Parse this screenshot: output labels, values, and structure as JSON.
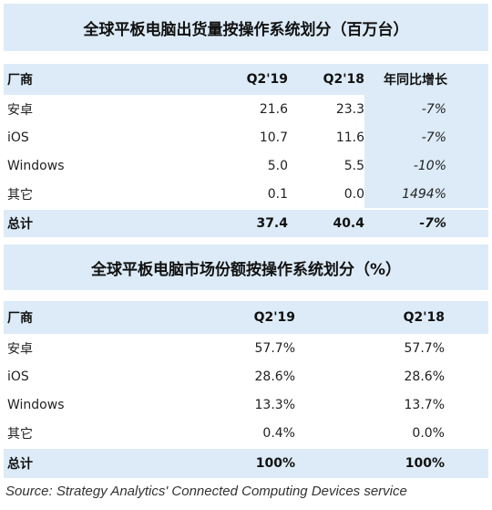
{
  "chart_data": [
    {
      "type": "table",
      "title": "全球平板电脑出货量按操作系统划分（百万台）",
      "columns": [
        "厂商",
        "Q2'19",
        "Q2'18",
        "年同比增长"
      ],
      "rows": [
        {
          "vendor": "安卓",
          "q2_19": "21.6",
          "q2_18": "23.3",
          "yoy": "-7%"
        },
        {
          "vendor": "iOS",
          "q2_19": "10.7",
          "q2_18": "11.6",
          "yoy": "-7%"
        },
        {
          "vendor": "Windows",
          "q2_19": "5.0",
          "q2_18": "5.5",
          "yoy": "-10%"
        },
        {
          "vendor": "其它",
          "q2_19": "0.1",
          "q2_18": "0.0",
          "yoy": "1494%"
        }
      ],
      "total": {
        "vendor": "总计",
        "q2_19": "37.4",
        "q2_18": "40.4",
        "yoy": "-7%"
      }
    },
    {
      "type": "table",
      "title": "全球平板电脑市场份额按操作系统划分（%）",
      "columns": [
        "厂商",
        "Q2'19",
        "Q2'18"
      ],
      "rows": [
        {
          "vendor": "安卓",
          "q2_19": "57.7%",
          "q2_18": "57.7%"
        },
        {
          "vendor": "iOS",
          "q2_19": "28.6%",
          "q2_18": "28.6%"
        },
        {
          "vendor": "Windows",
          "q2_19": "13.3%",
          "q2_18": "13.7%"
        },
        {
          "vendor": "其它",
          "q2_19": "0.4%",
          "q2_18": "0.0%"
        }
      ],
      "total": {
        "vendor": "总计",
        "q2_19": "100%",
        "q2_18": "100%"
      }
    }
  ],
  "source": "Source: Strategy Analytics' Connected Computing Devices service",
  "colors": {
    "header_fill": "#dcebf7",
    "text": "#222222"
  }
}
